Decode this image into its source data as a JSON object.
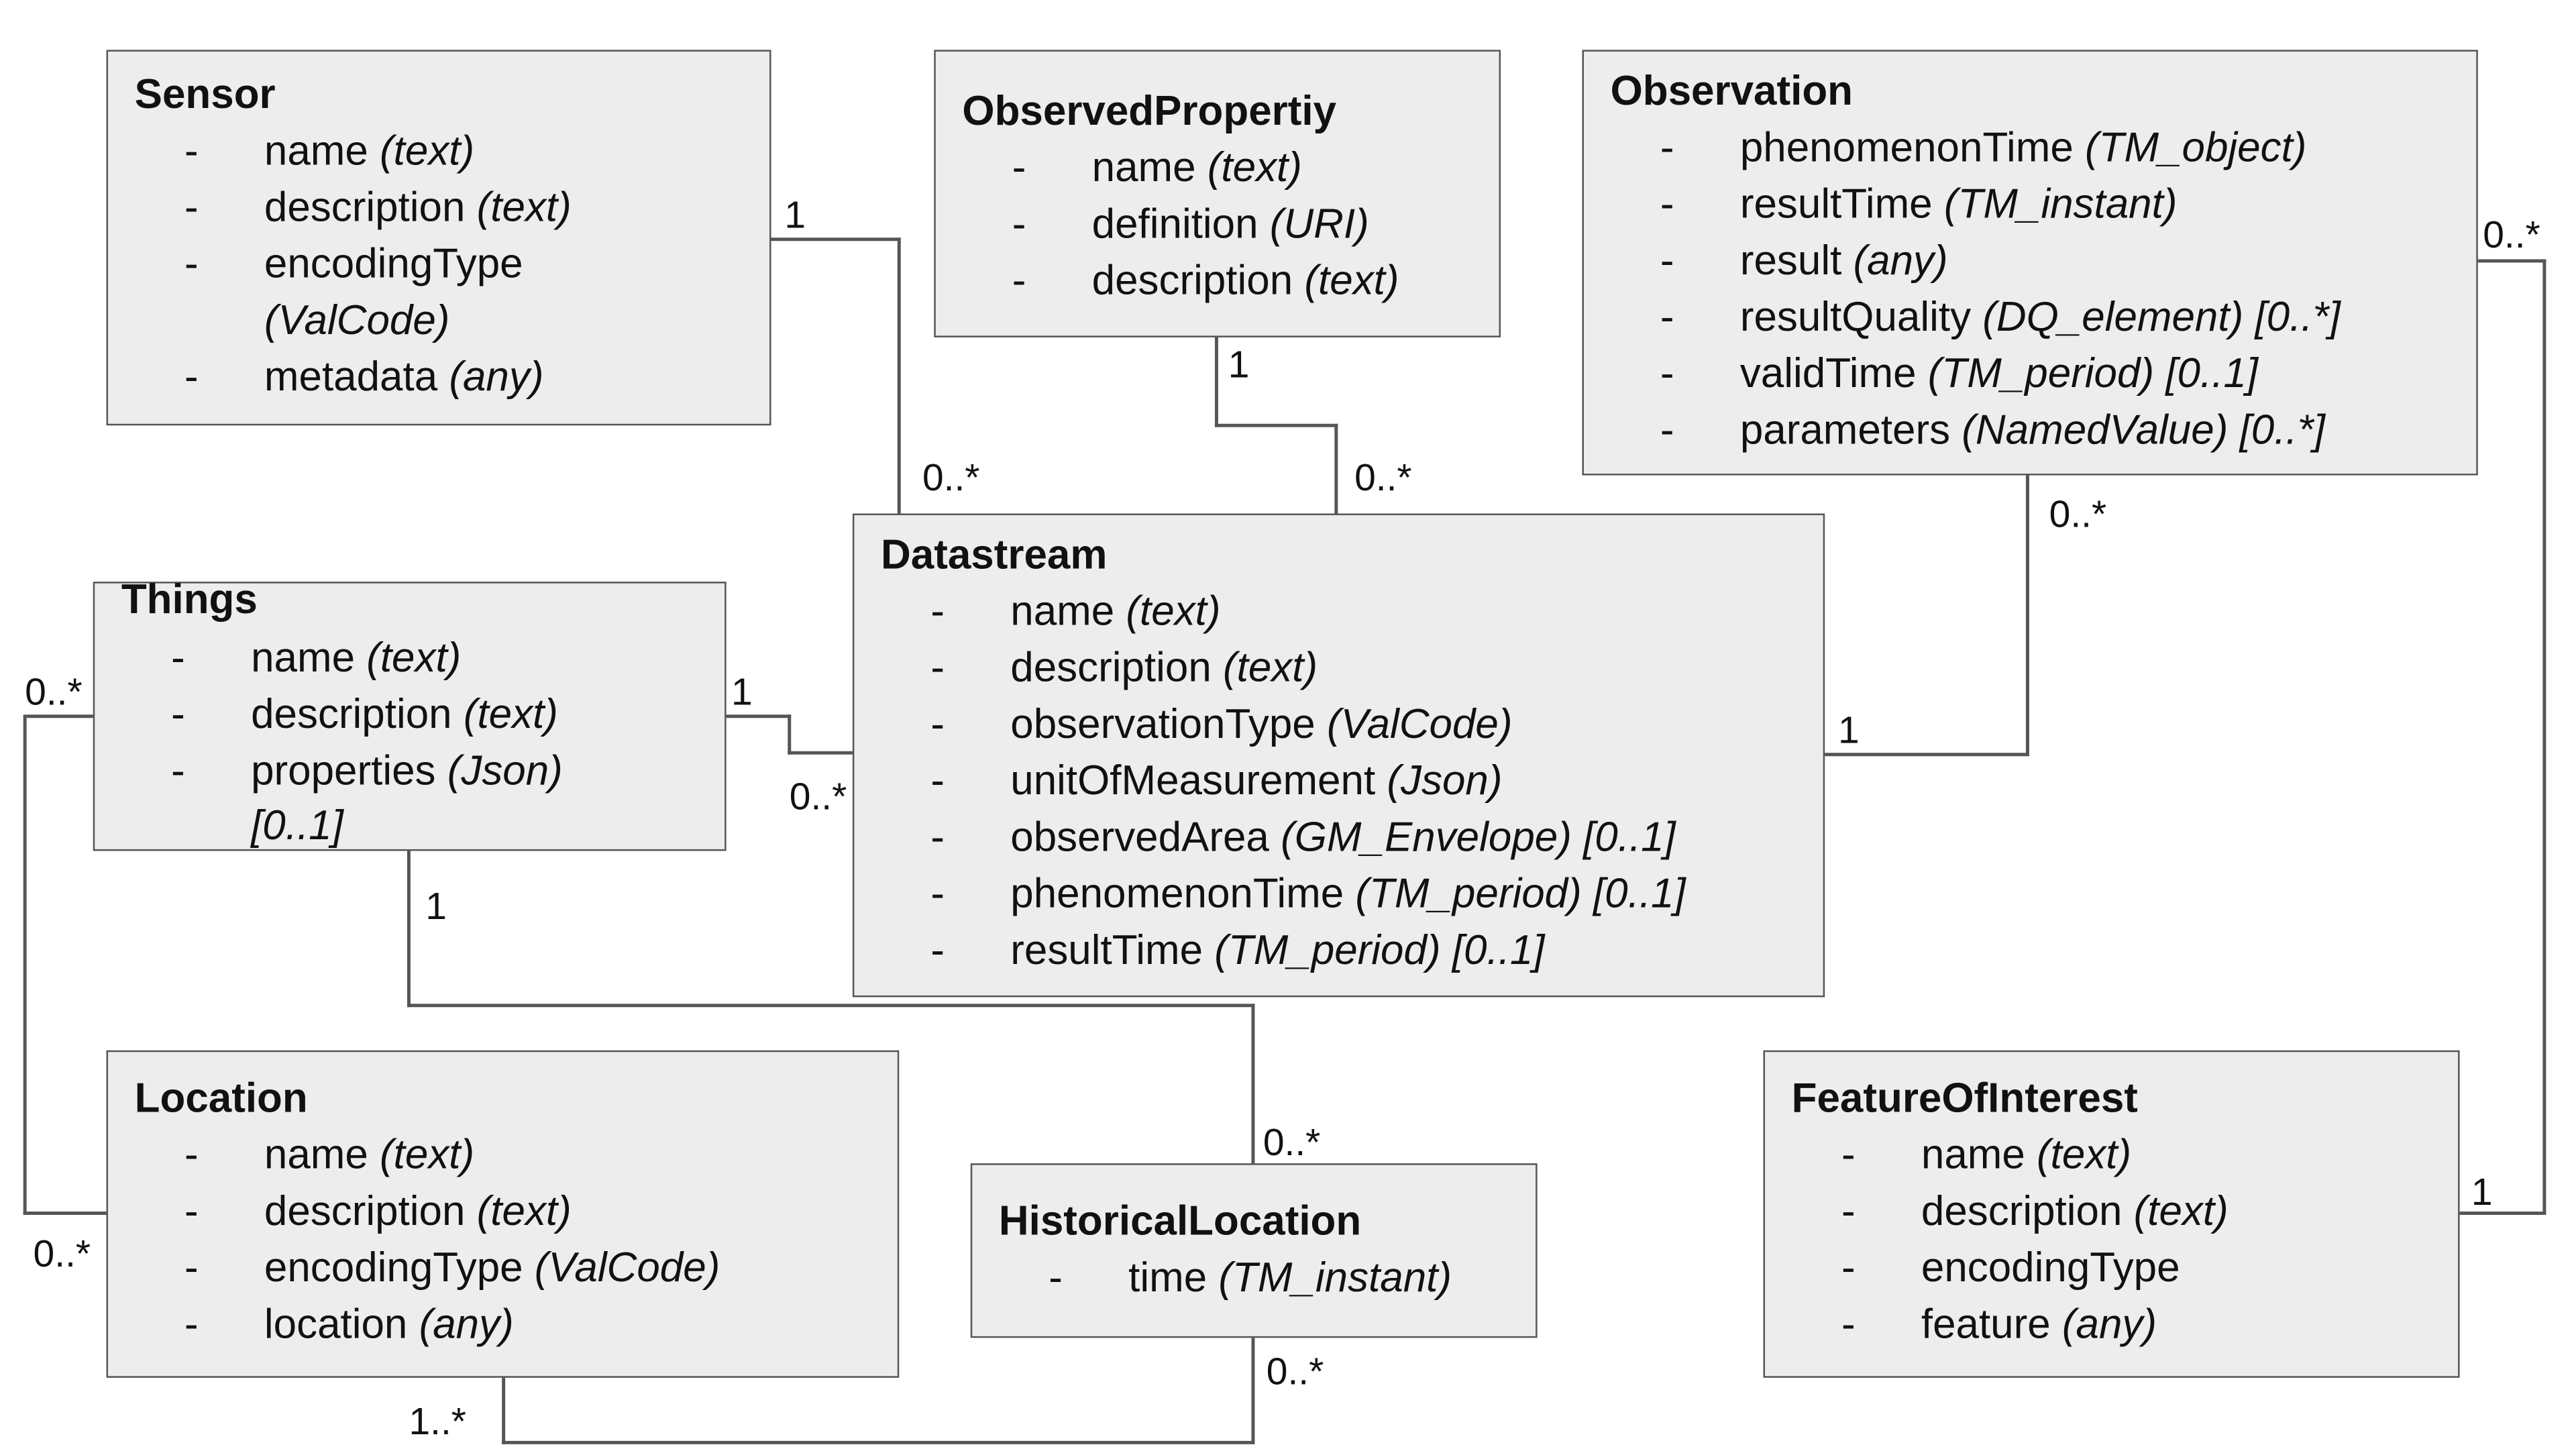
{
  "boxes": {
    "sensor": {
      "title": "Sensor",
      "attributes": [
        {
          "dash": "-",
          "name": "name ",
          "type": "(text)"
        },
        {
          "dash": "-",
          "name": "description ",
          "type": "(text)"
        },
        {
          "dash": "-",
          "name": "encodingType",
          "type": ""
        },
        {
          "dash": "",
          "name": "",
          "type": "(ValCode)"
        },
        {
          "dash": "-",
          "name": "metadata ",
          "type": "(any)"
        }
      ]
    },
    "observed_property": {
      "title": "ObservedPropertiy",
      "attributes": [
        {
          "dash": "-",
          "name": "name ",
          "type": "(text)"
        },
        {
          "dash": "-",
          "name": "definition ",
          "type": "(URI)"
        },
        {
          "dash": "-",
          "name": "description ",
          "type": "(text)"
        }
      ]
    },
    "observation": {
      "title": "Observation",
      "attributes": [
        {
          "dash": "-",
          "name": "phenomenonTime ",
          "type": "(TM_object)"
        },
        {
          "dash": "-",
          "name": "resultTime ",
          "type": "(TM_instant)"
        },
        {
          "dash": "-",
          "name": "result ",
          "type": "(any)"
        },
        {
          "dash": "-",
          "name": "resultQuality ",
          "type": "(DQ_element) [0..*]"
        },
        {
          "dash": "-",
          "name": "validTime ",
          "type": "(TM_period) [0..1]"
        },
        {
          "dash": "-",
          "name": "parameters ",
          "type": "(NamedValue) [0..*]"
        }
      ]
    },
    "things": {
      "title": "Things",
      "attributes": [
        {
          "dash": "-",
          "name": "name ",
          "type": "(text)"
        },
        {
          "dash": "-",
          "name": "description ",
          "type": "(text)"
        },
        {
          "dash": "-",
          "name": "properties ",
          "type": "(Json)"
        },
        {
          "dash": "",
          "name": "",
          "type": "[0..1]"
        }
      ]
    },
    "datastream": {
      "title": "Datastream",
      "attributes": [
        {
          "dash": "-",
          "name": "name ",
          "type": "(text)"
        },
        {
          "dash": "-",
          "name": "description ",
          "type": "(text)"
        },
        {
          "dash": "-",
          "name": "observationType ",
          "type": "(ValCode)"
        },
        {
          "dash": "-",
          "name": "unitOfMeasurement ",
          "type": "(Json)"
        },
        {
          "dash": "-",
          "name": "observedArea ",
          "type": "(GM_Envelope) [0..1]"
        },
        {
          "dash": "-",
          "name": "phenomenonTime ",
          "type": "(TM_period) [0..1]"
        },
        {
          "dash": "-",
          "name": "resultTime ",
          "type": "(TM_period) [0..1]"
        }
      ]
    },
    "location": {
      "title": "Location",
      "attributes": [
        {
          "dash": "-",
          "name": "name ",
          "type": "(text)"
        },
        {
          "dash": "-",
          "name": "description ",
          "type": "(text)"
        },
        {
          "dash": "-",
          "name": "encodingType ",
          "type": "(ValCode)"
        },
        {
          "dash": "-",
          "name": "location ",
          "type": "(any)"
        }
      ]
    },
    "historical_location": {
      "title": "HistoricalLocation",
      "attributes": [
        {
          "dash": "-",
          "name": "time ",
          "type": "(TM_instant)"
        }
      ]
    },
    "feature_of_interest": {
      "title": "FeatureOfInterest",
      "attributes": [
        {
          "dash": "-",
          "name": "name ",
          "type": "(text)"
        },
        {
          "dash": "-",
          "name": "description ",
          "type": "(text)"
        },
        {
          "dash": "-",
          "name": "encodingType",
          "type": ""
        },
        {
          "dash": "-",
          "name": "feature ",
          "type": "(any)"
        }
      ]
    }
  },
  "multiplicities": {
    "sensor_datastream_sensor": "1",
    "sensor_datastream_datastream": "0..*",
    "obsprop_datastream_obsprop": "1",
    "obsprop_datastream_datastream": "0..*",
    "observation_datastream_observation": "0..*",
    "observation_datastream_datastream": "1",
    "observation_foi_observation": "0..*",
    "observation_foi_foi": "1",
    "things_datastream_things": "1",
    "things_datastream_datastream": "0..*",
    "things_location_things": "0..*",
    "things_location_location": "0..*",
    "things_historical_things": "1",
    "things_historical_historical": "0..*",
    "location_historical_location": "1..*",
    "location_historical_historical": "0..*"
  }
}
